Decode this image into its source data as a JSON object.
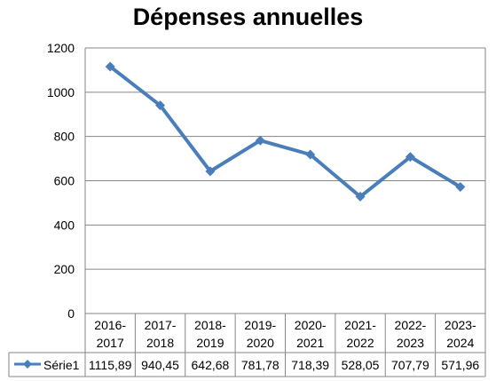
{
  "chart_data": {
    "type": "line",
    "title": "Dépenses annuelles",
    "categories": [
      [
        "2016-",
        "2017"
      ],
      [
        "2017-",
        "2018"
      ],
      [
        "2018-",
        "2019"
      ],
      [
        "2019-",
        "2020"
      ],
      [
        "2020-",
        "2021"
      ],
      [
        "2021-",
        "2022"
      ],
      [
        "2022-",
        "2023"
      ],
      [
        "2023-",
        "2024"
      ]
    ],
    "series": [
      {
        "name": "Série1",
        "values": [
          1115.89,
          940.45,
          642.68,
          781.78,
          718.39,
          528.05,
          707.79,
          571.96
        ],
        "value_labels": [
          "1115,89",
          "940,45",
          "642,68",
          "781,78",
          "718,39",
          "528,05",
          "707,79",
          "571,96"
        ],
        "color": "#4a7ebb",
        "marker": "diamond"
      }
    ],
    "ylim": [
      0,
      1200
    ],
    "yticks": [
      0,
      200,
      400,
      600,
      800,
      1000,
      1200
    ],
    "grid": true,
    "data_table": true,
    "gridline_color": "#868686"
  }
}
